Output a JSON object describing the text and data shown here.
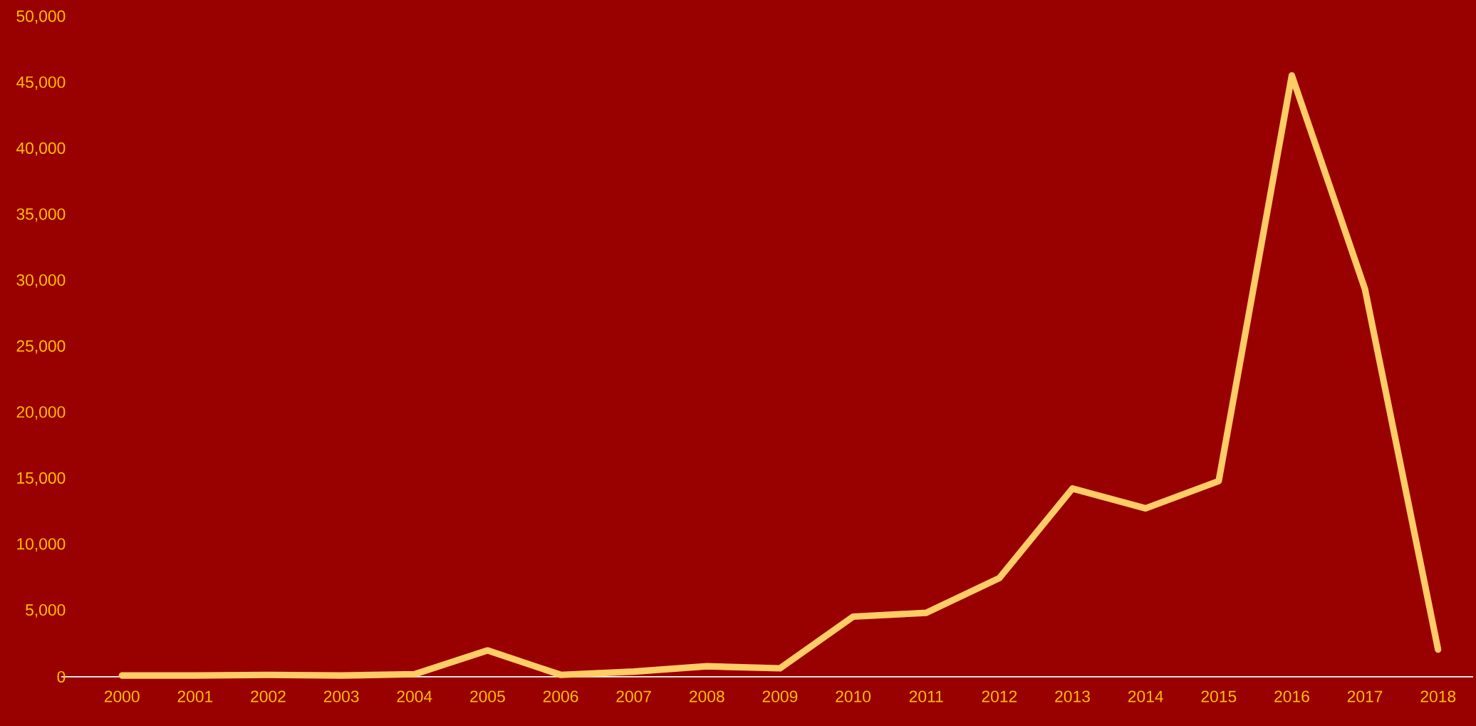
{
  "chart_data": {
    "type": "line",
    "categories": [
      "2000",
      "2001",
      "2002",
      "2003",
      "2004",
      "2005",
      "2006",
      "2007",
      "2008",
      "2009",
      "2010",
      "2011",
      "2012",
      "2013",
      "2014",
      "2015",
      "2016",
      "2017",
      "2018"
    ],
    "series": [
      {
        "color": "#ffcc66",
        "values": [
          100,
          100,
          150,
          100,
          200,
          2000,
          150,
          400,
          800,
          650,
          4560,
          4850,
          7490,
          14270,
          12770,
          14840,
          45580,
          29390,
          2070
        ]
      }
    ],
    "ylim": [
      0,
      50000
    ],
    "yticks": [
      {
        "value": 0,
        "label": "0"
      },
      {
        "value": 5000,
        "label": "5,000"
      },
      {
        "value": 10000,
        "label": "10,000"
      },
      {
        "value": 15000,
        "label": "15,000"
      },
      {
        "value": 20000,
        "label": "20,000"
      },
      {
        "value": 25000,
        "label": "25,000"
      },
      {
        "value": 30000,
        "label": "30,000"
      },
      {
        "value": 35000,
        "label": "35,000"
      },
      {
        "value": 40000,
        "label": "40,000"
      },
      {
        "value": 45000,
        "label": "45,000"
      },
      {
        "value": 50000,
        "label": "50,000"
      }
    ],
    "grid": false,
    "marker": "none",
    "line_style": "solid"
  }
}
